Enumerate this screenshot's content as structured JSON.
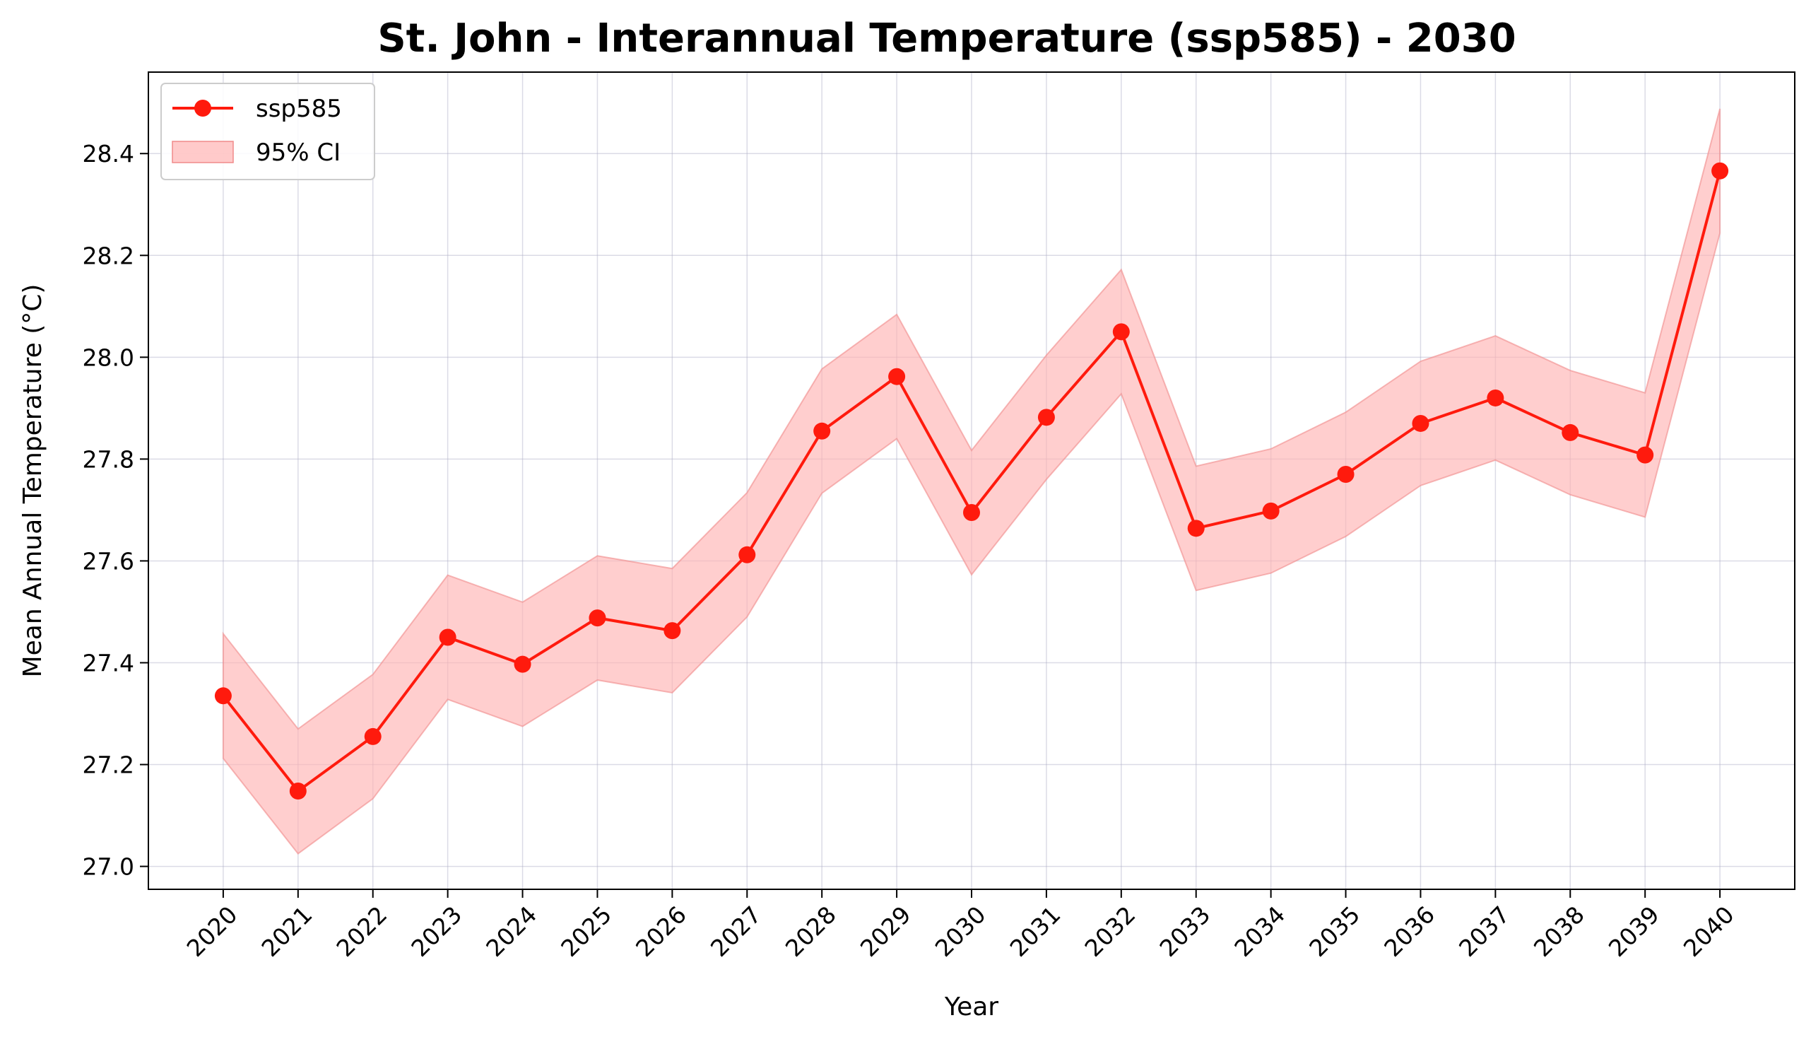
{
  "chart_data": {
    "type": "line",
    "title": "St. John - Interannual Temperature (ssp585) - 2030",
    "xlabel": "Year",
    "ylabel": "Mean Annual Temperature (°C)",
    "x": [
      2020,
      2021,
      2022,
      2023,
      2024,
      2025,
      2026,
      2027,
      2028,
      2029,
      2030,
      2031,
      2032,
      2033,
      2034,
      2035,
      2036,
      2037,
      2038,
      2039,
      2040
    ],
    "series": [
      {
        "name": "ssp585",
        "values": [
          27.335,
          27.148,
          27.255,
          27.45,
          27.397,
          27.488,
          27.463,
          27.612,
          27.855,
          27.962,
          27.695,
          27.882,
          28.05,
          27.664,
          27.698,
          27.77,
          27.87,
          27.92,
          27.852,
          27.808,
          28.366
        ],
        "color": "#ff1a0d"
      }
    ],
    "ci": {
      "name": "95% CI",
      "lower": [
        27.212,
        27.025,
        27.133,
        27.328,
        27.275,
        27.366,
        27.341,
        27.49,
        27.733,
        27.84,
        27.573,
        27.76,
        27.928,
        27.542,
        27.576,
        27.648,
        27.748,
        27.798,
        27.73,
        27.686,
        28.244
      ],
      "upper": [
        27.457,
        27.27,
        27.377,
        27.572,
        27.519,
        27.61,
        27.585,
        27.734,
        27.977,
        28.084,
        27.817,
        28.004,
        28.172,
        27.786,
        27.82,
        27.892,
        27.992,
        28.042,
        27.974,
        27.93,
        28.488
      ],
      "color": "#ffb3b3"
    },
    "yticks": [
      27.0,
      27.2,
      27.4,
      27.6,
      27.8,
      28.0,
      28.2,
      28.4
    ],
    "ylim": [
      26.955,
      28.56
    ],
    "xlim": [
      2019.0,
      2041.0
    ],
    "grid": true,
    "legend_position": "top-left"
  }
}
